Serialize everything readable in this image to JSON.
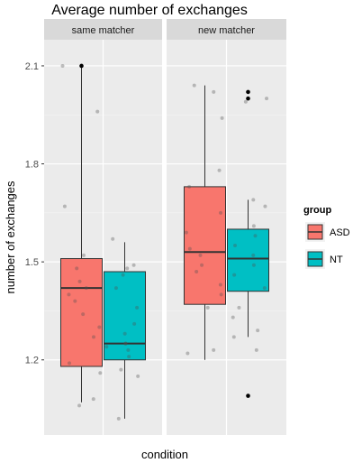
{
  "chart_data": {
    "type": "boxplot",
    "title": "Average number of exchanges",
    "xlabel": "condition",
    "ylabel": "number of exchanges",
    "ylim": [
      0.97,
      2.18
    ],
    "y_ticks": [
      1.2,
      1.5,
      1.8,
      2.1
    ],
    "y_tick_labels": [
      "1.2",
      "1.5",
      "1.8",
      "2.1"
    ],
    "grid": true,
    "legend": {
      "title": "group",
      "position": "right",
      "entries": [
        {
          "label": "ASD",
          "color": "#F8766D"
        },
        {
          "label": "NT",
          "color": "#00BFC4"
        }
      ]
    },
    "facets": [
      {
        "label": "same matcher",
        "boxes": [
          {
            "group": "ASD",
            "whisker_low": 1.07,
            "q1": 1.18,
            "median": 1.42,
            "q3": 1.51,
            "whisker_high": 2.1,
            "outliers": [
              2.1
            ],
            "jitter": [
              2.1,
              1.96,
              1.67,
              1.52,
              1.48,
              1.44,
              1.42,
              1.4,
              1.38,
              1.34,
              1.3,
              1.27,
              1.19,
              1.16,
              1.08,
              1.06
            ]
          },
          {
            "group": "NT",
            "whisker_low": 1.02,
            "q1": 1.2,
            "median": 1.25,
            "q3": 1.47,
            "whisker_high": 1.56,
            "outliers": [],
            "jitter": [
              1.57,
              1.49,
              1.48,
              1.46,
              1.42,
              1.36,
              1.31,
              1.28,
              1.25,
              1.25,
              1.24,
              1.23,
              1.21,
              1.17,
              1.15,
              1.02
            ]
          }
        ]
      },
      {
        "label": "new matcher",
        "boxes": [
          {
            "group": "ASD",
            "whisker_low": 1.2,
            "q1": 1.37,
            "median": 1.53,
            "q3": 1.73,
            "whisker_high": 2.04,
            "outliers": [],
            "jitter": [
              2.04,
              2.02,
              1.94,
              1.78,
              1.73,
              1.65,
              1.59,
              1.54,
              1.52,
              1.49,
              1.47,
              1.43,
              1.4,
              1.36,
              1.23,
              1.22
            ]
          },
          {
            "group": "NT",
            "whisker_low": 1.27,
            "q1": 1.41,
            "median": 1.51,
            "q3": 1.6,
            "whisker_high": 1.69,
            "outliers": [
              2.02,
              2.0,
              1.09
            ],
            "jitter": [
              2.0,
              1.99,
              1.69,
              1.67,
              1.61,
              1.58,
              1.55,
              1.52,
              1.49,
              1.46,
              1.42,
              1.36,
              1.33,
              1.29,
              1.27,
              1.23
            ]
          }
        ]
      }
    ]
  }
}
